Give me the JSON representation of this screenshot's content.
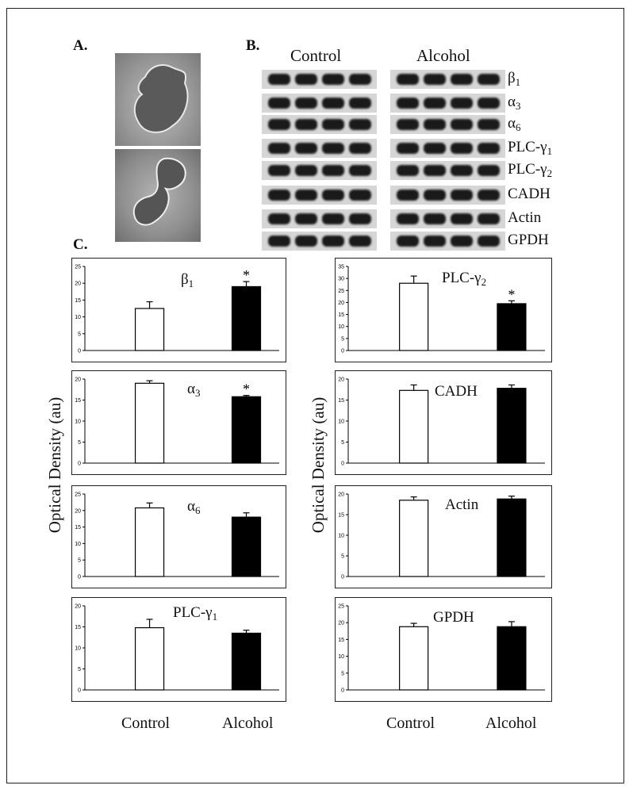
{
  "panels": {
    "a": "A.",
    "b": "B.",
    "c": "C."
  },
  "groups": {
    "control": "Control",
    "alcohol": "Alcohol"
  },
  "blot_rows": [
    {
      "label": "β",
      "sub": "1"
    },
    {
      "label": "α",
      "sub": "3"
    },
    {
      "label": "α",
      "sub": "6"
    },
    {
      "label": "PLC-γ",
      "sub": "1"
    },
    {
      "label": "PLC-γ",
      "sub": "2"
    },
    {
      "label": "CADH",
      "sub": ""
    },
    {
      "label": "Actin",
      "sub": ""
    },
    {
      "label": "GPDH",
      "sub": ""
    }
  ],
  "y_axis_label": "Optical Density (au)",
  "colors": {
    "control": "#ffffff",
    "alcohol": "#000000"
  },
  "chart_data": [
    {
      "type": "bar",
      "label": "β",
      "sub": "1",
      "categories": [
        "Control",
        "Alcohol"
      ],
      "values": [
        12.5,
        19
      ],
      "errors": [
        2,
        1.5
      ],
      "significant": [
        false,
        true
      ],
      "ylim": [
        0,
        25
      ],
      "ticks": [
        0,
        5,
        10,
        15,
        20,
        25
      ]
    },
    {
      "type": "bar",
      "label": "α",
      "sub": "3",
      "categories": [
        "Control",
        "Alcohol"
      ],
      "values": [
        19,
        15.8
      ],
      "errors": [
        0.6,
        0.3
      ],
      "significant": [
        false,
        true
      ],
      "ylim": [
        0,
        20
      ],
      "ticks": [
        0,
        5,
        10,
        15,
        20
      ]
    },
    {
      "type": "bar",
      "label": "α",
      "sub": "6",
      "categories": [
        "Control",
        "Alcohol"
      ],
      "values": [
        20.8,
        18
      ],
      "errors": [
        1.5,
        1.3
      ],
      "significant": [
        false,
        false
      ],
      "ylim": [
        0,
        25
      ],
      "ticks": [
        0,
        5,
        10,
        15,
        20,
        25
      ]
    },
    {
      "type": "bar",
      "label": "PLC-γ",
      "sub": "1",
      "categories": [
        "Control",
        "Alcohol"
      ],
      "values": [
        14.8,
        13.5
      ],
      "errors": [
        2,
        0.7
      ],
      "significant": [
        false,
        false
      ],
      "ylim": [
        0,
        20
      ],
      "ticks": [
        0,
        5,
        10,
        15,
        20
      ]
    },
    {
      "type": "bar",
      "label": "PLC-γ",
      "sub": "2",
      "categories": [
        "Control",
        "Alcohol"
      ],
      "values": [
        28,
        19.5
      ],
      "errors": [
        3,
        1.2
      ],
      "significant": [
        false,
        true
      ],
      "ylim": [
        0,
        35
      ],
      "ticks": [
        0,
        5,
        10,
        15,
        20,
        25,
        30,
        35
      ]
    },
    {
      "type": "bar",
      "label": "CADH",
      "sub": "",
      "categories": [
        "Control",
        "Alcohol"
      ],
      "values": [
        17.3,
        17.8
      ],
      "errors": [
        1.3,
        0.8
      ],
      "significant": [
        false,
        false
      ],
      "ylim": [
        0,
        20
      ],
      "ticks": [
        0,
        5,
        10,
        15,
        20
      ]
    },
    {
      "type": "bar",
      "label": "Actin",
      "sub": "",
      "categories": [
        "Control",
        "Alcohol"
      ],
      "values": [
        18.5,
        18.8
      ],
      "errors": [
        0.8,
        0.7
      ],
      "significant": [
        false,
        false
      ],
      "ylim": [
        0,
        20
      ],
      "ticks": [
        0,
        5,
        10,
        15,
        20
      ]
    },
    {
      "type": "bar",
      "label": "GPDH",
      "sub": "",
      "categories": [
        "Control",
        "Alcohol"
      ],
      "values": [
        18.8,
        18.8
      ],
      "errors": [
        1,
        1.5
      ],
      "significant": [
        false,
        false
      ],
      "ylim": [
        0,
        25
      ],
      "ticks": [
        0,
        5,
        10,
        15,
        20,
        25
      ]
    }
  ]
}
